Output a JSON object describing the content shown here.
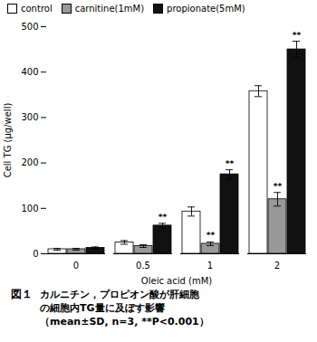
{
  "chart_data": {
    "type": "bar",
    "xlabel": "Oleic acid (mM)",
    "ylabel": "Cell TG (μg/well)",
    "categories": [
      "0",
      "0.5",
      "1",
      "2"
    ],
    "series": [
      {
        "name": "control",
        "color": "#ffffff",
        "values": [
          10,
          25,
          93,
          358
        ],
        "errors": [
          2,
          4,
          10,
          12
        ]
      },
      {
        "name": "carnitine(1mM)",
        "color": "#999999",
        "values": [
          10,
          17,
          22,
          120
        ],
        "errors": [
          2,
          3,
          4,
          15
        ]
      },
      {
        "name": "propionate(5mM)",
        "color": "#111111",
        "values": [
          13,
          62,
          175,
          450
        ],
        "errors": [
          2,
          5,
          10,
          18
        ]
      }
    ],
    "ylim": [
      0,
      500
    ],
    "yticks": [
      0,
      100,
      200,
      300,
      400,
      500
    ],
    "grid": false,
    "legend": "upper left",
    "annotations": [
      {
        "x": "0.5",
        "series": "propionate(5mM)",
        "text": "**"
      },
      {
        "x": "1",
        "series": "carnitine(1mM)",
        "text": "**"
      },
      {
        "x": "1",
        "series": "propionate(5mM)",
        "text": "**"
      },
      {
        "x": "2",
        "series": "carnitine(1mM)",
        "text": "**"
      },
      {
        "x": "2",
        "series": "propionate(5mM)",
        "text": "**"
      }
    ],
    "caption": [
      "図１",
      "カルニチン，プロピオン酸が肝細胞",
      "の細胞内TG量に及ぼす影響",
      "（mean±SD, n=3, **P<0.001）"
    ]
  }
}
